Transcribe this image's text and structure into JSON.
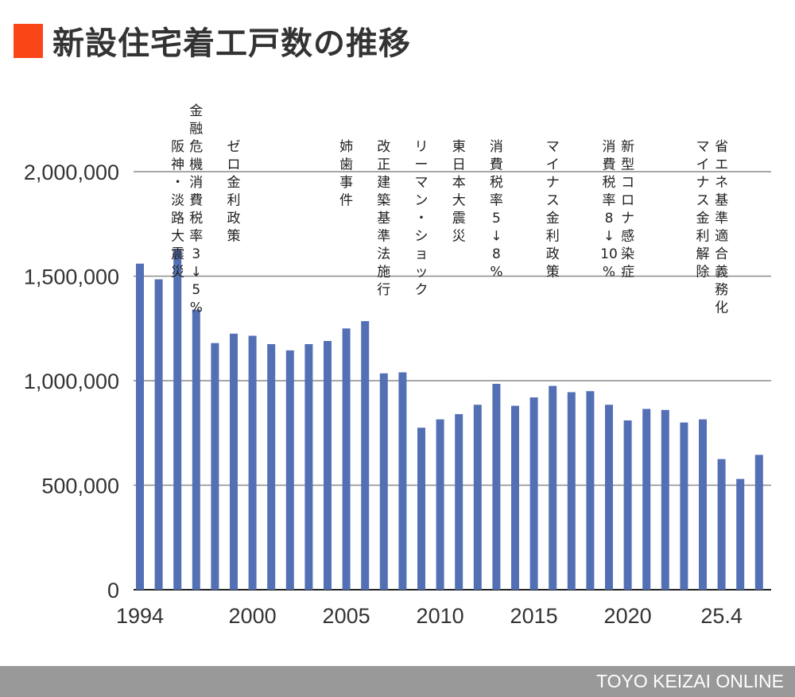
{
  "title": "新設住宅着工戸数の推移",
  "accent_color": "#fa4616",
  "bar_color": "#5470b4",
  "footer": "TOYO KEIZAI ONLINE",
  "chart_data": {
    "type": "bar",
    "title": "新設住宅着工戸数の推移",
    "xlabel": "",
    "ylabel": "",
    "ylim": [
      0,
      2000000
    ],
    "grid": true,
    "yticks": [
      0,
      500000,
      1000000,
      1500000,
      2000000
    ],
    "ytick_labels": [
      "0",
      "500,000",
      "1,000,000",
      "1,500,000",
      "2,000,000"
    ],
    "xtick_labels": [
      {
        "index": 0,
        "label": "1994"
      },
      {
        "index": 6,
        "label": "2000"
      },
      {
        "index": 11,
        "label": "2005"
      },
      {
        "index": 16,
        "label": "2010"
      },
      {
        "index": 21,
        "label": "2015"
      },
      {
        "index": 26,
        "label": "2020"
      },
      {
        "index": 31,
        "label": "25.4"
      }
    ],
    "categories": [
      "1994",
      "1995",
      "1996",
      "1997",
      "1998",
      "1999",
      "2000",
      "2001",
      "2002",
      "2003",
      "2004",
      "2005",
      "2006",
      "2007",
      "2008",
      "2009",
      "2010",
      "2011",
      "2012",
      "2013",
      "2014",
      "2015",
      "2016",
      "2017",
      "2018",
      "2019",
      "2020",
      "2021",
      "2022",
      "2023",
      "2024",
      "25.4",
      "",
      ""
    ],
    "values": [
      1560000,
      1485000,
      1630000,
      1340000,
      1180000,
      1225000,
      1215000,
      1175000,
      1145000,
      1175000,
      1190000,
      1250000,
      1285000,
      1035000,
      1040000,
      775000,
      815000,
      840000,
      885000,
      985000,
      880000,
      920000,
      975000,
      945000,
      950000,
      885000,
      810000,
      865000,
      860000,
      800000,
      815000,
      625000,
      530000,
      645000
    ],
    "annotations": [
      {
        "index": 1,
        "text": "阪神・淡路大震災"
      },
      {
        "index": 3,
        "text": "金融危機消費税率3↓5%"
      },
      {
        "index": 5,
        "text": "ゼロ金利政策"
      },
      {
        "index": 11,
        "text": "姉歯事件"
      },
      {
        "index": 13,
        "text": "改正建築基準法施行"
      },
      {
        "index": 15,
        "text": "リーマン・ショック"
      },
      {
        "index": 17,
        "text": "東日本大震災"
      },
      {
        "index": 19,
        "text": "消費税率5↓8%"
      },
      {
        "index": 22,
        "text": "マイナス金利政策"
      },
      {
        "index": 25,
        "text": "消費税率8↓10%"
      },
      {
        "index": 26,
        "text": "新型コロナ感染症"
      },
      {
        "index": 30,
        "text": "マイナス金利解除"
      },
      {
        "index": 31,
        "text": "省エネ基準適合義務化"
      }
    ]
  }
}
